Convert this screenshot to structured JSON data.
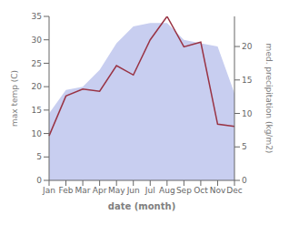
{
  "chart_data": {
    "type": "line",
    "categories": [
      "Jan",
      "Feb",
      "Mar",
      "Apr",
      "May",
      "Jun",
      "Jul",
      "Aug",
      "Sep",
      "Oct",
      "Nov",
      "Dec"
    ],
    "series": [
      {
        "type": "area",
        "axis": "y2",
        "color": "#c8cef0",
        "values": [
          10.0,
          13.5,
          14.0,
          16.5,
          20.5,
          23.0,
          23.5,
          23.5,
          21.0,
          20.5,
          20.0,
          13.0
        ]
      },
      {
        "type": "line",
        "color": "#993344",
        "values": [
          9.5,
          18.0,
          19.5,
          19.0,
          24.5,
          22.5,
          30.0,
          35.0,
          28.5,
          29.5,
          12.0,
          11.5
        ]
      }
    ],
    "xlabel": "date (month)",
    "ylabel": "max temp (C)",
    "y2label": "med. precipitation (kg/m2)",
    "ylim": [
      0,
      35
    ],
    "yticks": [
      0,
      5,
      10,
      15,
      20,
      25,
      30,
      35
    ],
    "y2lim": [
      0,
      24.5
    ],
    "y2ticks": [
      0,
      5,
      10,
      15,
      20
    ],
    "grid": false
  }
}
